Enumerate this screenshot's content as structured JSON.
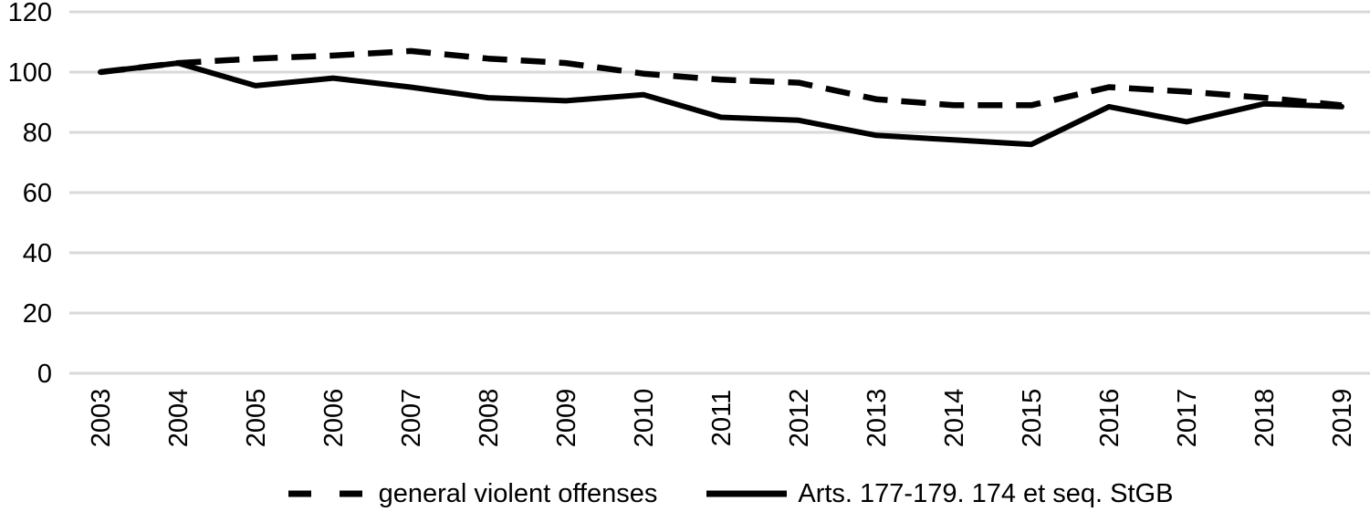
{
  "chart_data": {
    "type": "line",
    "title": "",
    "xlabel": "",
    "ylabel": "",
    "x": [
      "2003",
      "2004",
      "2005",
      "2006",
      "2007",
      "2008",
      "2009",
      "2010",
      "2011",
      "2012",
      "2013",
      "2014",
      "2015",
      "2016",
      "2017",
      "2018",
      "2019"
    ],
    "series": [
      {
        "name": "general violent offenses",
        "line_style": "dashed",
        "color": "#000000",
        "values": [
          100,
          103,
          104.5,
          105.5,
          107,
          104.5,
          103,
          99.5,
          97.5,
          96.5,
          91,
          89,
          89,
          95,
          93.5,
          91.5,
          89
        ]
      },
      {
        "name": "Arts. 177-179. 174 et seq. StGB",
        "line_style": "solid",
        "color": "#000000",
        "values": [
          100,
          103,
          95.5,
          98,
          95,
          91.5,
          90.5,
          92.5,
          85,
          84,
          79,
          77.5,
          76,
          88.5,
          83.5,
          89.5,
          88.5
        ]
      }
    ],
    "ylim": [
      0,
      120
    ],
    "yticks": [
      0,
      20,
      40,
      60,
      80,
      100,
      120
    ],
    "grid": true,
    "gridline_color": "#d9d9d9",
    "text_color": "#000000",
    "background_color": "#ffffff",
    "legend_position": "bottom",
    "x_tick_rotation": -90
  },
  "legend": {
    "items": [
      {
        "label": "general violent offenses",
        "key": "dashed-line"
      },
      {
        "label": "Arts. 177-179. 174 et seq. StGB",
        "key": "solid-line"
      }
    ]
  }
}
